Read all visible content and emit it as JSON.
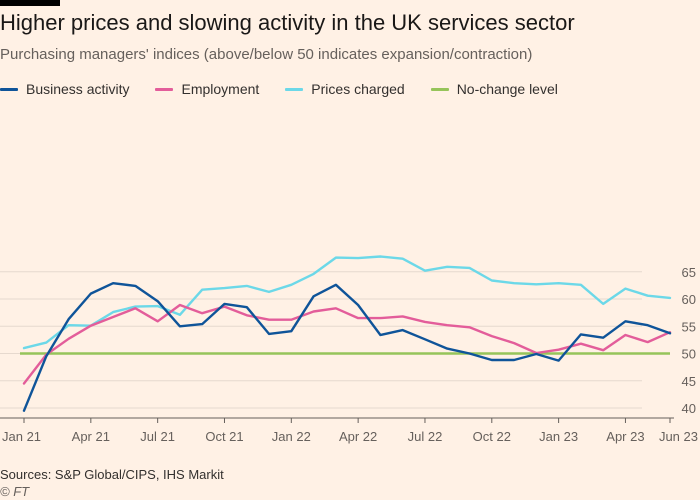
{
  "title": "Higher prices and slowing activity in the UK services sector",
  "subtitle": "Purchasing managers' indices (above/below 50 indicates expansion/contraction)",
  "source": "Sources: S&P Global/CIPS, IHS Markit",
  "copyright": "© FT",
  "colors": {
    "background": "#fff1e5",
    "grid": "#e6d9ce",
    "business": "#0f5499",
    "employment": "#e35d9a",
    "prices": "#6cd8e8",
    "nochange": "#96c45a"
  },
  "chart_data": {
    "type": "line",
    "ylim": [
      40,
      67
    ],
    "yticks": [
      40,
      45,
      50,
      55,
      60,
      65
    ],
    "x_labels": [
      "Jan 21",
      "Apr 21",
      "Jul 21",
      "Oct 21",
      "Jan 22",
      "Apr 22",
      "Jul 22",
      "Oct 22",
      "Jan 23",
      "Apr 23",
      "Jun 23"
    ],
    "x_label_index": [
      0,
      3,
      6,
      9,
      12,
      15,
      18,
      21,
      24,
      27,
      29
    ],
    "x": [
      "2021-01",
      "2021-02",
      "2021-03",
      "2021-04",
      "2021-05",
      "2021-06",
      "2021-07",
      "2021-08",
      "2021-09",
      "2021-10",
      "2021-11",
      "2021-12",
      "2022-01",
      "2022-02",
      "2022-03",
      "2022-04",
      "2022-05",
      "2022-06",
      "2022-07",
      "2022-08",
      "2022-09",
      "2022-10",
      "2022-11",
      "2022-12",
      "2023-01",
      "2023-02",
      "2023-03",
      "2023-04",
      "2023-05",
      "2023-06"
    ],
    "grid": true,
    "series": [
      {
        "key": "business",
        "name": "Business activity",
        "values": [
          39.5,
          49.5,
          56.3,
          61.0,
          62.9,
          62.4,
          59.6,
          55.0,
          55.4,
          59.1,
          58.5,
          53.6,
          54.1,
          60.5,
          62.6,
          58.9,
          53.4,
          54.3,
          52.6,
          50.9,
          50.0,
          48.8,
          48.8,
          49.9,
          48.7,
          53.5,
          52.9,
          55.9,
          55.2,
          53.7
        ]
      },
      {
        "key": "employment",
        "name": "Employment",
        "values": [
          44.5,
          49.8,
          52.7,
          55.1,
          56.7,
          58.3,
          55.9,
          58.9,
          57.4,
          58.6,
          57.0,
          56.2,
          56.2,
          57.7,
          58.3,
          56.5,
          56.5,
          56.8,
          55.8,
          55.2,
          54.8,
          53.2,
          51.9,
          50.1,
          50.7,
          51.8,
          50.6,
          53.4,
          52.1,
          53.9
        ]
      },
      {
        "key": "prices",
        "name": "Prices charged",
        "values": [
          51.0,
          52.0,
          55.2,
          55.1,
          57.6,
          58.6,
          58.7,
          57.1,
          61.7,
          62.0,
          62.4,
          61.3,
          62.6,
          64.6,
          67.6,
          67.5,
          67.8,
          67.4,
          65.2,
          65.9,
          65.7,
          63.4,
          62.9,
          62.7,
          62.9,
          62.6,
          59.1,
          61.9,
          60.6,
          60.2
        ]
      }
    ],
    "reference_lines": [
      {
        "key": "nochange",
        "name": "No-change level",
        "value": 50
      }
    ]
  }
}
